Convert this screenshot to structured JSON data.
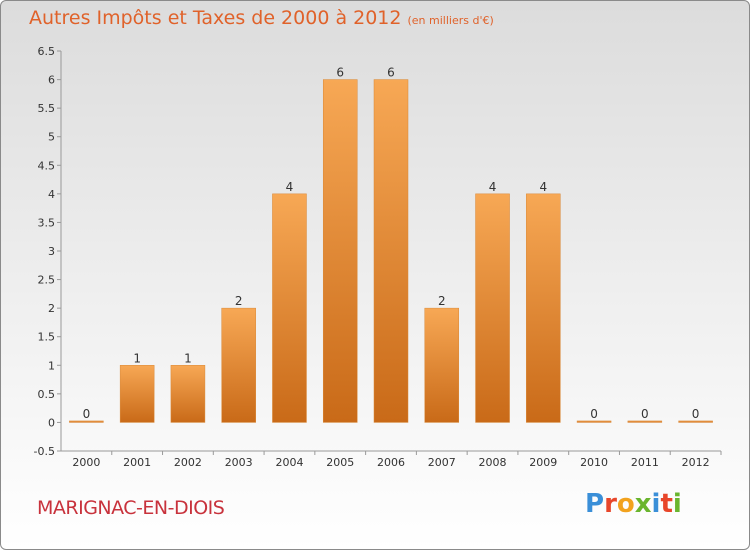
{
  "header": {
    "title": "Autres Impôts et Taxes de 2000 à 2012",
    "unit": "(en milliers d'€)"
  },
  "footer": {
    "commune": "MARIGNAC-EN-DIOIS",
    "brand": [
      "P",
      "r",
      "o",
      "x",
      "i",
      "t",
      "i"
    ]
  },
  "colors": {
    "title": "#e0622a",
    "commune": "#c8323c",
    "bar_light": "#f7a855",
    "bar_dark": "#c96a18",
    "brand": [
      "#3a8fd8",
      "#e8462a",
      "#f2a21e",
      "#6ab52e",
      "#3a8fd8",
      "#e8462a",
      "#6ab52e"
    ]
  },
  "chart_data": {
    "type": "bar",
    "title": "Autres Impôts et Taxes de 2000 à 2012",
    "categories": [
      "2000",
      "2001",
      "2002",
      "2003",
      "2004",
      "2005",
      "2006",
      "2007",
      "2008",
      "2009",
      "2010",
      "2011",
      "2012"
    ],
    "values": [
      0,
      1,
      1,
      2,
      4,
      6,
      6,
      2,
      4,
      4,
      0,
      0,
      0
    ],
    "data_labels": [
      "0",
      "1",
      "1",
      "2",
      "4",
      "6",
      "6",
      "2",
      "4",
      "4",
      "0",
      "0",
      "0"
    ],
    "yticks": [
      "-0.5",
      "0",
      "0.5",
      "1",
      "1.5",
      "2",
      "2.5",
      "3",
      "3.5",
      "4",
      "4.5",
      "5",
      "5.5",
      "6",
      "6.5"
    ],
    "ylim": [
      -0.5,
      6.5
    ],
    "grid": false,
    "legend": "none"
  }
}
